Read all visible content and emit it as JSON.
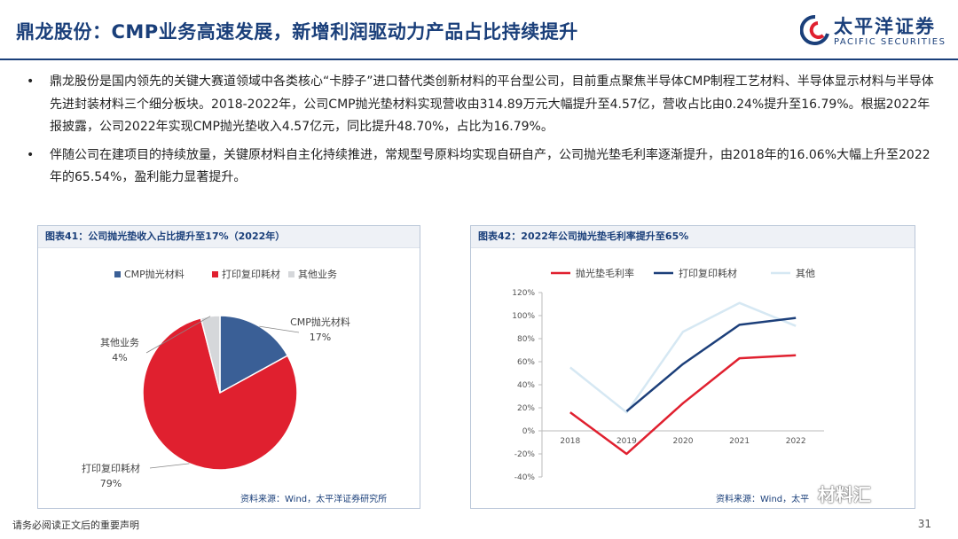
{
  "header": {
    "title": "鼎龙股份：CMP业务高速发展，新增利润驱动力产品占比持续提升",
    "logo_cn": "太平洋证券",
    "logo_en": "PACIFIC SECURITIES"
  },
  "bullets": [
    "鼎龙股份是国内领先的关键大赛道领域中各类核心“卡脖子”进口替代类创新材料的平台型公司，目前重点聚焦半导体CMP制程工艺材料、半导体显示材料与半导体先进封装材料三个细分板块。2018-2022年，公司CMP抛光垫材料实现营收由314.89万元大幅提升至4.57亿，营收占比由0.24%提升至16.79%。根据2022年报披露，公司2022年实现CMP抛光垫收入4.57亿元，同比提升48.70%，占比为16.79%。",
    "伴随公司在建项目的持续放量，关键原材料自主化持续推进，常规型号原料均实现自研自产，公司抛光垫毛利率逐渐提升，由2018年的16.06%大幅上升至2022年的65.54%，盈利能力显著提升。"
  ],
  "bullet_mark": "•",
  "panel_left": {
    "title": "图表41：公司抛光垫收入占比提升至17%（2022年）",
    "source": "资料来源：Wind，太平洋证券研究所"
  },
  "panel_right": {
    "title": "图表42：2022年公司抛光垫毛利率提升至65%",
    "source": "资料来源：Wind，太平"
  },
  "chart_data": [
    {
      "type": "pie",
      "title": "公司抛光垫收入占比提升至17%（2022年）",
      "legend": [
        "CMP抛光材料",
        "打印复印耗材",
        "其他业务"
      ],
      "slices": [
        {
          "label": "CMP抛光材料",
          "value": 17,
          "display": "17%",
          "color": "#3a5f96"
        },
        {
          "label": "打印复印耗材",
          "value": 79,
          "display": "79%",
          "color": "#e0202f"
        },
        {
          "label": "其他业务",
          "value": 4,
          "display": "4%",
          "color": "#d5d7da"
        }
      ]
    },
    {
      "type": "line",
      "title": "2022年公司抛光垫毛利率提升至65%",
      "categories": [
        "2018",
        "2019",
        "2020",
        "2021",
        "2022"
      ],
      "yticks": [
        "120%",
        "100%",
        "80%",
        "60%",
        "40%",
        "20%",
        "0%",
        "-20%",
        "-40%"
      ],
      "ylim": [
        -40,
        120
      ],
      "series": [
        {
          "name": "抛光垫毛利率",
          "color": "#e0202f",
          "values": [
            16.06,
            -20,
            24,
            63,
            65.54
          ]
        },
        {
          "name": "打印复印耗材",
          "color": "#1c3f7a",
          "values": [
            null,
            17,
            58,
            92,
            98
          ]
        },
        {
          "name": "其他",
          "color": "#d6e8f3",
          "values": [
            55,
            16,
            86,
            111,
            91
          ]
        }
      ]
    }
  ],
  "footer": {
    "disclaimer": "请务必阅读正文后的重要声明",
    "page": "31",
    "watermark": "材料汇"
  }
}
